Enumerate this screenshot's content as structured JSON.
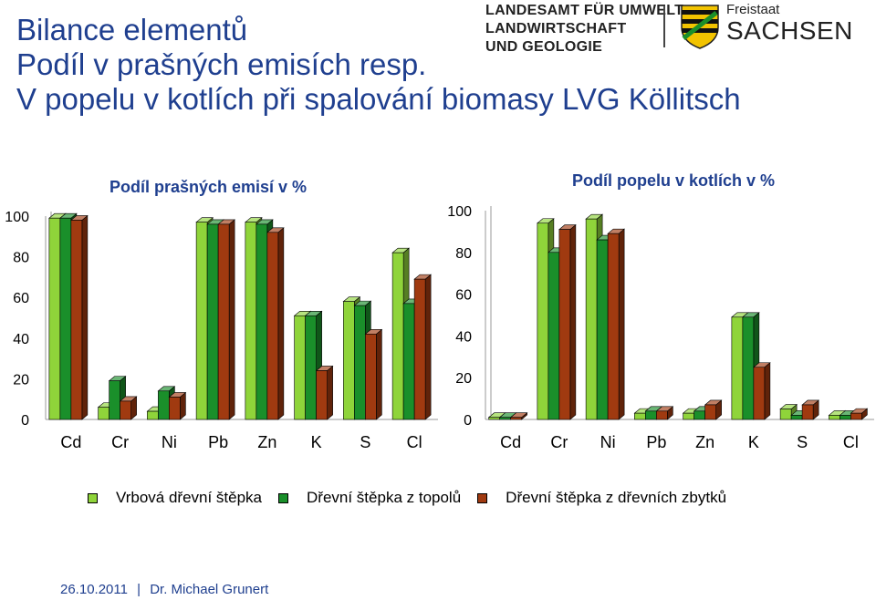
{
  "title_lines": [
    "Bilance elementů",
    "Podíl v prašných emisích resp.",
    "V popelu v kotlích při spalování biomasy LVG Köllitsch"
  ],
  "logo": {
    "lines": [
      "LANDESAMT FÜR UMWELT,",
      "LANDWIRTSCHAFT",
      "UND GEOLOGIE"
    ],
    "freistaat": "Freistaat",
    "sachsen": "SACHSEN"
  },
  "colors": {
    "series_1": "#8fd43a",
    "series_2": "#1a8f2a",
    "series_3": "#a03a10",
    "title": "#1f3f8f"
  },
  "legend": [
    {
      "label": "Vrbová dřevní štěpka"
    },
    {
      "label": "Dřevní štěpka z topolů"
    },
    {
      "label": "Dřevní štěpka z dřevních zbytků"
    }
  ],
  "footer": {
    "date": "26.10.2011",
    "separator": "|",
    "author": "Dr. Michael Grunert"
  },
  "chart_data": [
    {
      "type": "bar",
      "title": "Podíl prašných emisí v %",
      "categories": [
        "Cd",
        "Cr",
        "Ni",
        "Pb",
        "Zn",
        "K",
        "S",
        "Cl"
      ],
      "ylim": [
        0,
        100
      ],
      "yticks": [
        "0",
        "20",
        "40",
        "60",
        "80",
        "100"
      ],
      "series": [
        {
          "name": "Vrbová dřevní štěpka",
          "values": [
            99,
            6,
            4,
            97,
            97,
            51,
            58,
            82
          ]
        },
        {
          "name": "Dřevní štěpka z topolů",
          "values": [
            99,
            19,
            14,
            96,
            96,
            51,
            56,
            57
          ]
        },
        {
          "name": "Dřevní štěpka z dřevních zbytků",
          "values": [
            98,
            9,
            11,
            96,
            92,
            24,
            42,
            69
          ]
        }
      ]
    },
    {
      "type": "bar",
      "title": "Podíl popelu v kotlích v %",
      "categories": [
        "Cd",
        "Cr",
        "Ni",
        "Pb",
        "Zn",
        "K",
        "S",
        "Cl"
      ],
      "ylim": [
        0,
        100
      ],
      "yticks": [
        "0",
        "20",
        "40",
        "60",
        "80",
        "100"
      ],
      "series": [
        {
          "name": "Vrbová dřevní štěpka",
          "values": [
            1,
            94,
            96,
            3,
            3,
            49,
            5,
            2
          ]
        },
        {
          "name": "Dřevní štěpka z topolů",
          "values": [
            1,
            80,
            86,
            4,
            4,
            49,
            2,
            2
          ]
        },
        {
          "name": "Dřevní štěpka z dřevních zbytků",
          "values": [
            1,
            91,
            89,
            4,
            7,
            25,
            7,
            3
          ]
        }
      ]
    }
  ]
}
